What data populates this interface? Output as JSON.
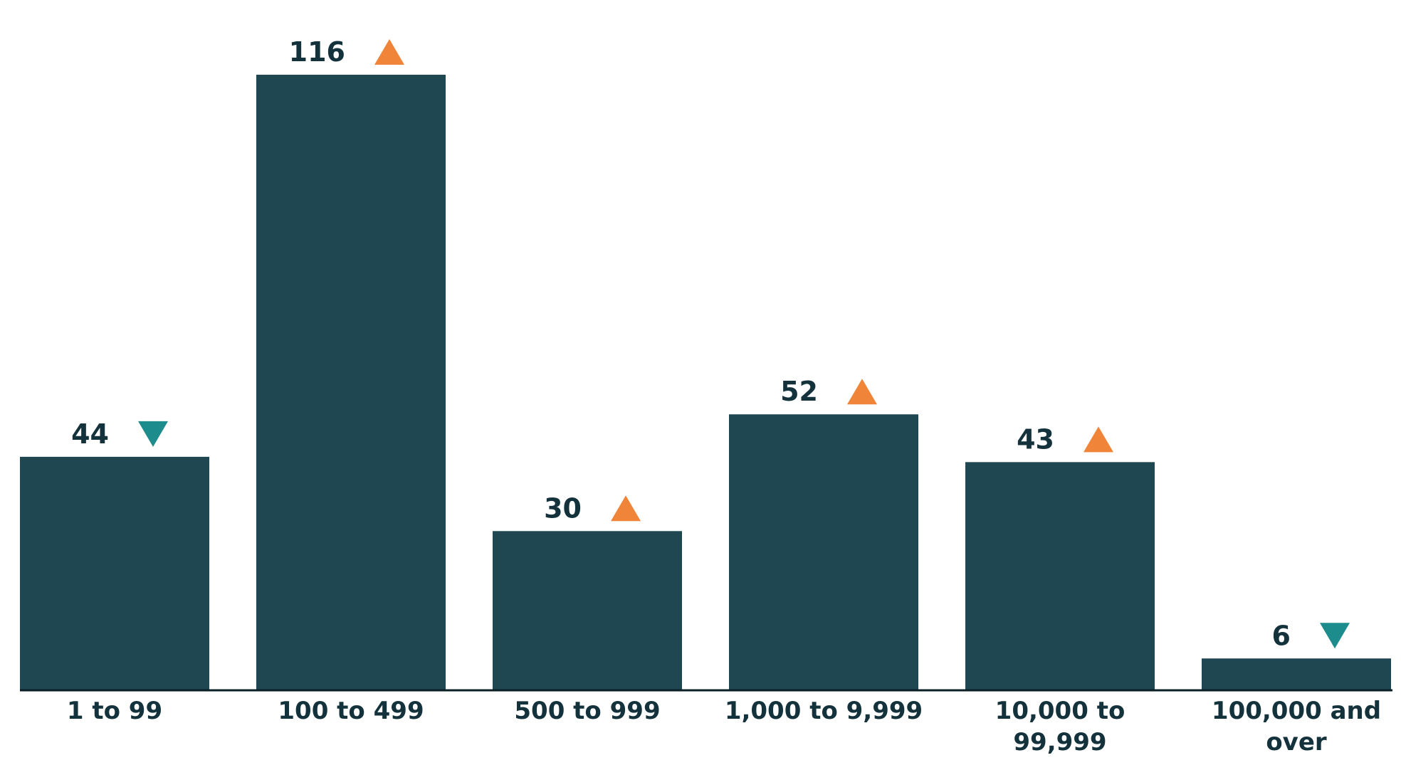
{
  "chart_data": {
    "type": "bar",
    "categories": [
      [
        "1 to 99"
      ],
      [
        "100 to 499"
      ],
      [
        "500 to 999"
      ],
      [
        "1,000 to 9,999"
      ],
      [
        "10,000 to",
        "99,999"
      ],
      [
        "100,000 and",
        "over"
      ]
    ],
    "values": [
      44,
      116,
      30,
      52,
      43,
      6
    ],
    "value_labels": [
      "44",
      "116",
      "30",
      "52",
      "43",
      "6"
    ],
    "trend": [
      "down",
      "up",
      "up",
      "up",
      "up",
      "down"
    ],
    "ylim": [
      0,
      116
    ],
    "title": "",
    "xlabel": "",
    "ylabel": "",
    "grid": false,
    "colors": {
      "bar": "#1f4751",
      "up": "#f08439",
      "down": "#1d8c8c",
      "text": "#14323c",
      "axis": "#0b1f26"
    },
    "icons": {
      "up": "triangle-up-icon",
      "down": "triangle-down-icon"
    }
  }
}
